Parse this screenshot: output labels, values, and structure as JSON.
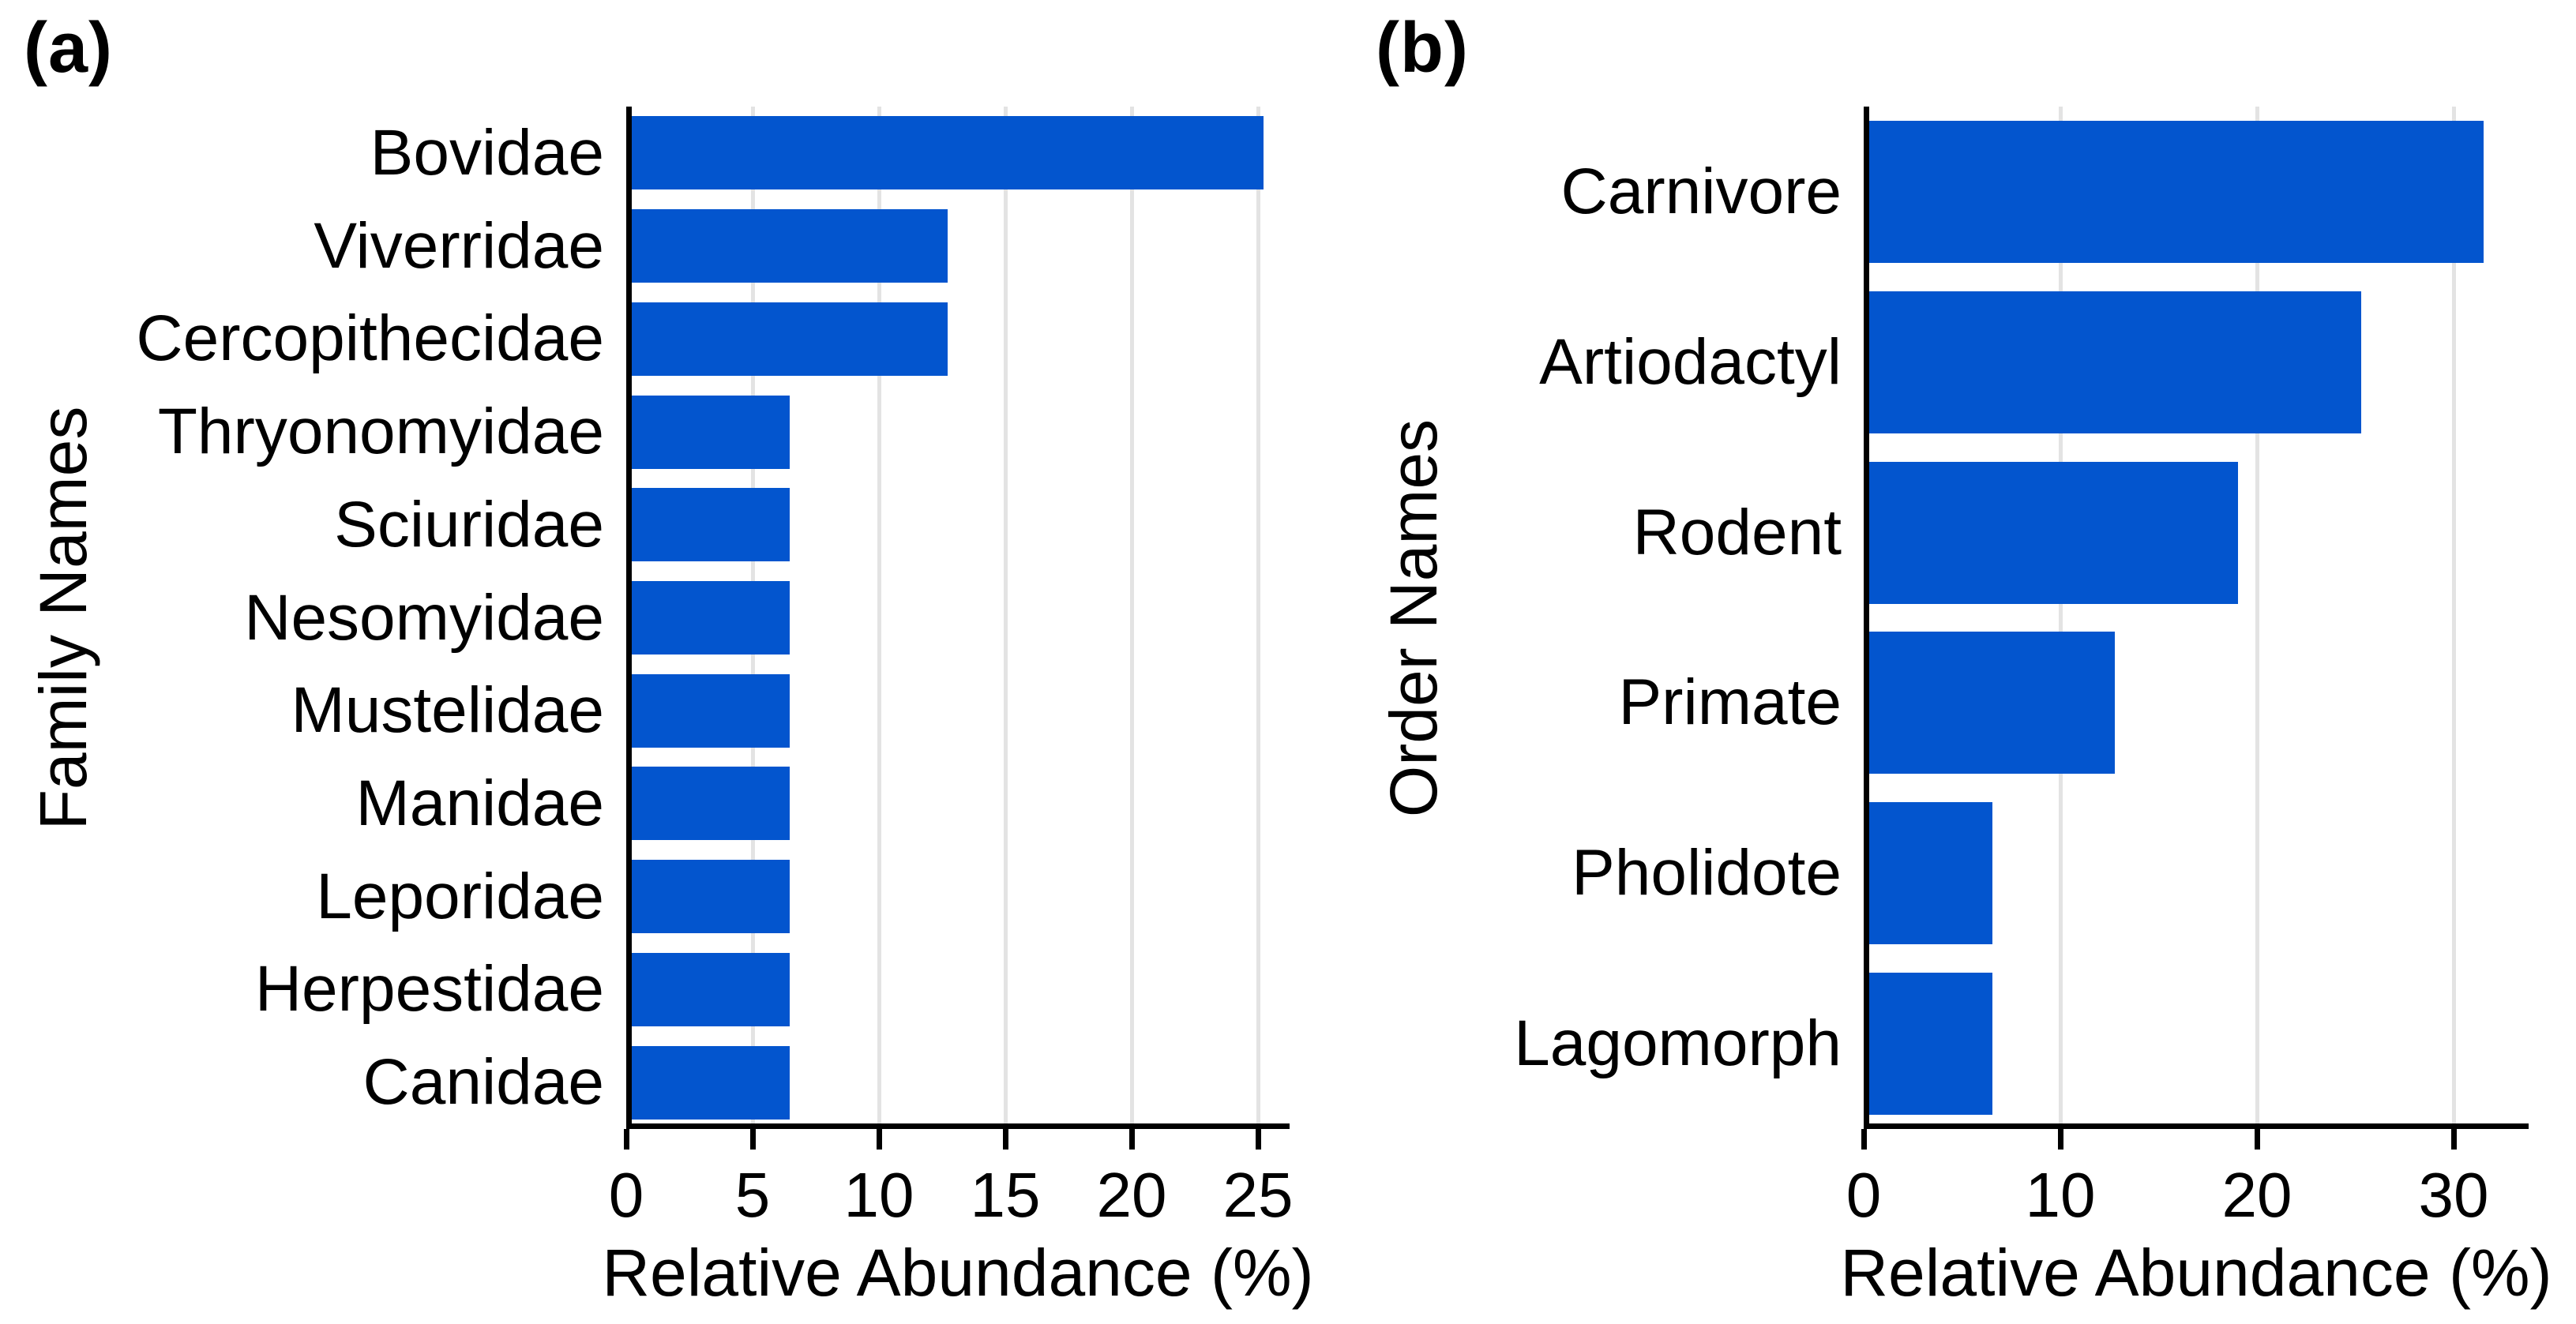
{
  "style": {
    "bar_color": "#0355CE",
    "grid_color": "#E3E3E3",
    "axis_color": "#000000",
    "text_color": "#000000"
  },
  "chart_data": [
    {
      "type": "bar",
      "orientation": "horizontal",
      "panel_label": "(a)",
      "ylabel": "Family Names",
      "xlabel": "Relative Abundance (%)",
      "categories": [
        "Bovidae",
        "Viverridae",
        "Cercopithecidae",
        "Thryonomyidae",
        "Sciuridae",
        "Nesomyidae",
        "Mustelidae",
        "Manidae",
        "Leporidae",
        "Herpestidae",
        "Canidae"
      ],
      "values": [
        25,
        12.5,
        12.5,
        6.25,
        6.25,
        6.25,
        6.25,
        6.25,
        6.25,
        6.25,
        6.25
      ],
      "xticks": [
        0,
        5,
        10,
        15,
        20,
        25
      ],
      "xlim": [
        0,
        26.25
      ],
      "grid": "vertical-only",
      "legend": "none"
    },
    {
      "type": "bar",
      "orientation": "horizontal",
      "panel_label": "(b)",
      "ylabel": "Order Names",
      "xlabel": "Relative Abundance (%)",
      "categories": [
        "Carnivore",
        "Artiodactyl",
        "Rodent",
        "Primate",
        "Pholidote",
        "Lagomorph"
      ],
      "values": [
        31.25,
        25,
        18.75,
        12.5,
        6.25,
        6.25
      ],
      "xticks": [
        0,
        10,
        20,
        30
      ],
      "xlim": [
        0,
        33.8
      ],
      "grid": "vertical-only",
      "legend": "none"
    }
  ]
}
